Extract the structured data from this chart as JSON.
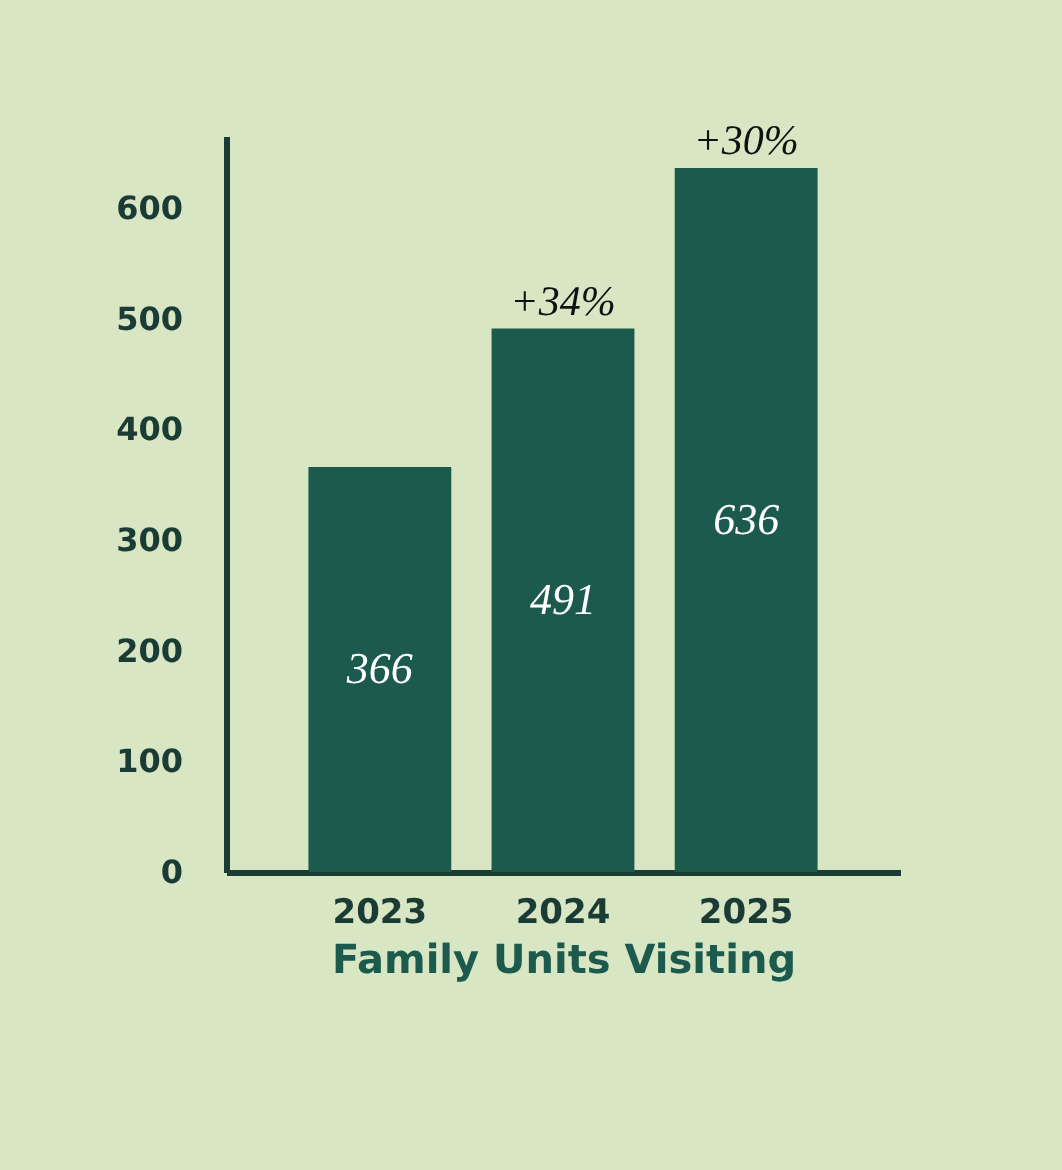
{
  "chart_data": {
    "type": "bar",
    "categories": [
      "2023",
      "2024",
      "2025"
    ],
    "values": [
      366,
      491,
      636
    ],
    "color": "#1b5a4c",
    "xlabel": "Family Units Visiting",
    "ylim": [
      0,
      665
    ],
    "yticks": [
      0,
      100,
      200,
      300,
      400,
      500,
      600
    ],
    "grid": false,
    "data_labels": true,
    "annotations": [
      {
        "text": "+34%",
        "x": "2024",
        "y": 491
      },
      {
        "text": "+30%",
        "x": "2025",
        "y": 636
      }
    ]
  }
}
